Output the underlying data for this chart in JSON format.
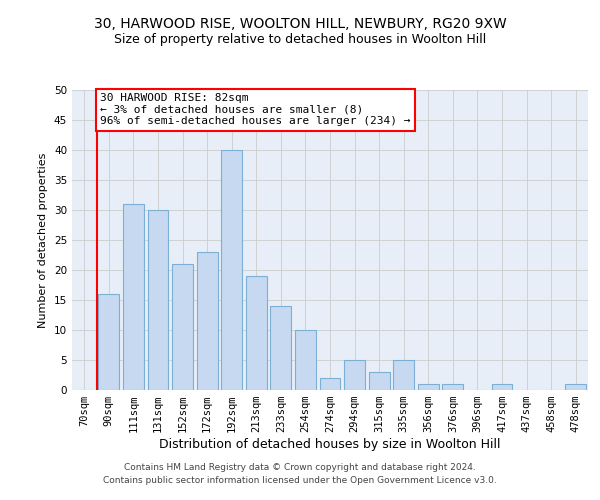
{
  "title1": "30, HARWOOD RISE, WOOLTON HILL, NEWBURY, RG20 9XW",
  "title2": "Size of property relative to detached houses in Woolton Hill",
  "xlabel": "Distribution of detached houses by size in Woolton Hill",
  "ylabel": "Number of detached properties",
  "categories": [
    "70sqm",
    "90sqm",
    "111sqm",
    "131sqm",
    "152sqm",
    "172sqm",
    "192sqm",
    "213sqm",
    "233sqm",
    "254sqm",
    "274sqm",
    "294sqm",
    "315sqm",
    "335sqm",
    "356sqm",
    "376sqm",
    "396sqm",
    "417sqm",
    "437sqm",
    "458sqm",
    "478sqm"
  ],
  "values": [
    0,
    16,
    31,
    30,
    21,
    23,
    40,
    19,
    14,
    10,
    2,
    5,
    3,
    5,
    1,
    1,
    0,
    1,
    0,
    0,
    1
  ],
  "bar_color": "#c6d9f1",
  "bar_edge_color": "#7bafd4",
  "vline_color": "red",
  "vline_x": 0.5,
  "annotation_text": "30 HARWOOD RISE: 82sqm\n← 3% of detached houses are smaller (8)\n96% of semi-detached houses are larger (234) →",
  "annotation_box_color": "white",
  "annotation_box_edge": "red",
  "grid_color": "#cccccc",
  "background_color": "#e8eef8",
  "ylim": [
    0,
    50
  ],
  "yticks": [
    0,
    5,
    10,
    15,
    20,
    25,
    30,
    35,
    40,
    45,
    50
  ],
  "footer1": "Contains HM Land Registry data © Crown copyright and database right 2024.",
  "footer2": "Contains public sector information licensed under the Open Government Licence v3.0.",
  "title1_fontsize": 10,
  "title2_fontsize": 9,
  "tick_fontsize": 7.5,
  "xlabel_fontsize": 9,
  "ylabel_fontsize": 8,
  "annotation_fontsize": 8,
  "footer_fontsize": 6.5
}
